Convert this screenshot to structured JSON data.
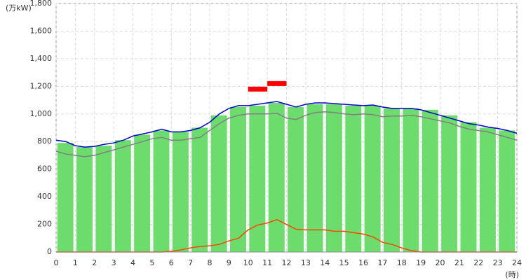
{
  "chart_data": {
    "type": "bar",
    "y_label": "(万kW)",
    "x_label": "(時)",
    "ylim": [
      0,
      1800
    ],
    "yticks": [
      0,
      200,
      400,
      600,
      800,
      {
        "value": 1000,
        "label": "1,000"
      },
      {
        "value": 1200,
        "label": "1,200"
      },
      {
        "value": 1400,
        "label": "1,400"
      },
      {
        "value": 1600,
        "label": "1,600"
      },
      {
        "value": 1800,
        "label": "1,800"
      }
    ],
    "xlim": [
      0,
      24
    ],
    "xticks": [
      0,
      1,
      2,
      3,
      4,
      5,
      6,
      7,
      8,
      9,
      10,
      11,
      12,
      13,
      14,
      15,
      16,
      17,
      18,
      19,
      20,
      21,
      22,
      23,
      24
    ],
    "grid": true,
    "bars": {
      "color": "#6cdc6c",
      "x": [
        0,
        1,
        2,
        3,
        4,
        5,
        6,
        7,
        8,
        9,
        10,
        11,
        12,
        13,
        14,
        15,
        16,
        17,
        18,
        19,
        20,
        21,
        22,
        23
      ],
      "values": [
        790,
        760,
        770,
        810,
        850,
        880,
        870,
        900,
        990,
        1050,
        1060,
        1080,
        1050,
        1070,
        1070,
        1060,
        1060,
        1040,
        1040,
        1030,
        990,
        940,
        900,
        880
      ]
    },
    "markers": {
      "color": "#ff0000",
      "x": [
        10,
        11
      ],
      "values": [
        1180,
        1220
      ]
    },
    "x": [
      0,
      0.5,
      1,
      1.5,
      2,
      2.5,
      3,
      3.5,
      4,
      4.5,
      5,
      5.5,
      6,
      6.5,
      7,
      7.5,
      8,
      8.5,
      9,
      9.5,
      10,
      10.5,
      11,
      11.5,
      12,
      12.5,
      13,
      13.5,
      14,
      14.5,
      15,
      15.5,
      16,
      16.5,
      17,
      17.5,
      18,
      18.5,
      19,
      19.5,
      20,
      20.5,
      21,
      21.5,
      22,
      22.5,
      23,
      23.5,
      24
    ],
    "series": [
      {
        "color": "#808080",
        "values": [
          730,
          710,
          700,
          690,
          700,
          720,
          740,
          760,
          780,
          800,
          820,
          830,
          810,
          810,
          820,
          830,
          880,
          930,
          970,
          990,
          1000,
          1000,
          1000,
          1005,
          970,
          960,
          990,
          1010,
          1015,
          1010,
          1000,
          995,
          1000,
          995,
          980,
          985,
          985,
          990,
          980,
          965,
          950,
          935,
          910,
          890,
          880,
          870,
          850,
          830,
          810
        ]
      },
      {
        "color": "#0000cc",
        "values": [
          810,
          800,
          770,
          760,
          765,
          780,
          790,
          810,
          840,
          855,
          870,
          890,
          870,
          870,
          880,
          900,
          940,
          1000,
          1040,
          1060,
          1060,
          1070,
          1080,
          1090,
          1070,
          1050,
          1070,
          1080,
          1080,
          1075,
          1070,
          1065,
          1060,
          1065,
          1050,
          1040,
          1040,
          1040,
          1030,
          1010,
          990,
          970,
          950,
          930,
          920,
          905,
          895,
          880,
          860
        ]
      },
      {
        "color": "#ff4500",
        "values": [
          0,
          0,
          0,
          0,
          0,
          0,
          0,
          0,
          0,
          0,
          0,
          0,
          5,
          15,
          30,
          40,
          45,
          55,
          80,
          100,
          160,
          195,
          210,
          235,
          200,
          165,
          160,
          160,
          160,
          150,
          150,
          140,
          130,
          110,
          70,
          55,
          30,
          10,
          0,
          0,
          0,
          0,
          0,
          0,
          0,
          0,
          0,
          0,
          0
        ]
      }
    ]
  }
}
